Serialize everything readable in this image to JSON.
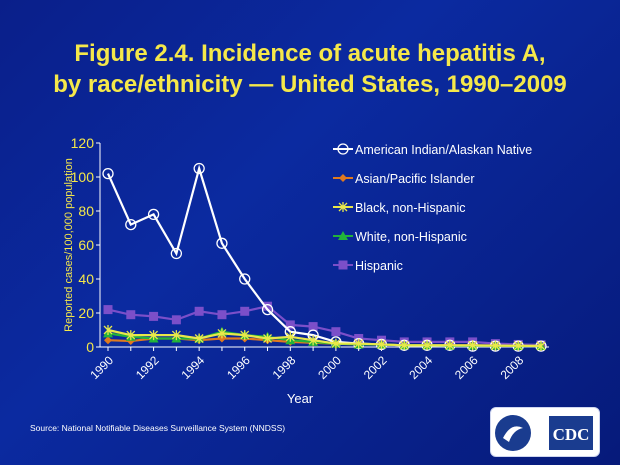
{
  "title_line1": "Figure 2.4.  Incidence of acute hepatitis A,",
  "title_line2": "by race/ethnicity — United States, 1990–2009",
  "source": "Source: National Notifiable Diseases Surveillance System (NNDSS)",
  "logo": {
    "text": "CDC"
  },
  "chart_data": {
    "type": "line",
    "xlabel": "Year",
    "ylabel": "Reported cases/100,000 population",
    "ylim": [
      0,
      120
    ],
    "yticks": [
      0,
      20,
      40,
      60,
      80,
      100,
      120
    ],
    "x": [
      1990,
      1991,
      1992,
      1993,
      1994,
      1995,
      1996,
      1997,
      1998,
      1999,
      2000,
      2001,
      2002,
      2003,
      2004,
      2005,
      2006,
      2007,
      2008,
      2009
    ],
    "xtick_labels": [
      "1990",
      "1992",
      "1994",
      "1996",
      "1998",
      "2000",
      "2002",
      "2004",
      "2006",
      "2008"
    ],
    "legend": "right",
    "series": [
      {
        "name": "American Indian/Alaskan Native",
        "color": "#ffffff",
        "marker": "circle",
        "values": [
          102,
          72,
          78,
          55,
          105,
          61,
          40,
          22,
          9,
          7,
          3,
          2,
          1.5,
          1,
          1,
          1,
          0.5,
          0.5,
          0.5,
          0.5
        ]
      },
      {
        "name": "Asian/Pacific Islander",
        "color": "#e07a1f",
        "marker": "diamond",
        "values": [
          4,
          3.5,
          5,
          5,
          4,
          5,
          5,
          4,
          3,
          2.5,
          2,
          1.5,
          1.5,
          1,
          1,
          1,
          1,
          0.8,
          0.7,
          0.6
        ]
      },
      {
        "name": "Black, non-Hispanic",
        "color": "#e8e84a",
        "marker": "star",
        "values": [
          10,
          7,
          7,
          7,
          5,
          8,
          7,
          5,
          6,
          4,
          2,
          2,
          1.5,
          1,
          1,
          1,
          1,
          0.8,
          0.7,
          0.6
        ]
      },
      {
        "name": "White, non-Hispanic",
        "color": "#22b33a",
        "marker": "triangle",
        "values": [
          8,
          6,
          5,
          5,
          5,
          9,
          7,
          6,
          4,
          3,
          2,
          1.5,
          1.5,
          1,
          1,
          0.8,
          0.8,
          0.8,
          0.6,
          0.6
        ]
      },
      {
        "name": "Hispanic",
        "color": "#7b4fc9",
        "marker": "square",
        "values": [
          22,
          19,
          18,
          16,
          21,
          19,
          21,
          24,
          13,
          12,
          9,
          5,
          4,
          3,
          3,
          3,
          3,
          2,
          1.5,
          1.3
        ]
      }
    ]
  }
}
